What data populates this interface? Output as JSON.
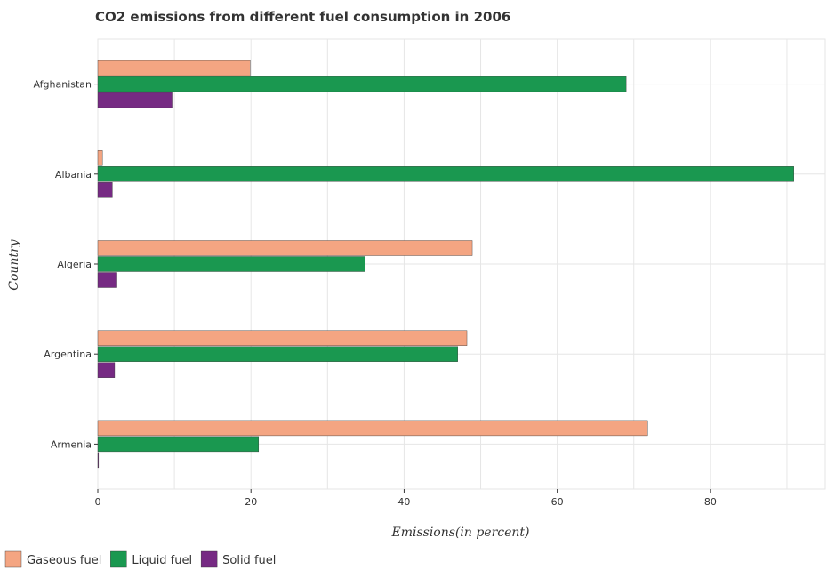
{
  "chart_data": {
    "type": "bar",
    "orientation": "horizontal",
    "title": "CO2 emissions from different fuel consumption in 2006",
    "xlabel": "Emissions(in percent)",
    "ylabel": "Country",
    "categories": [
      "Afghanistan",
      "Albania",
      "Algeria",
      "Argentina",
      "Armenia"
    ],
    "series": [
      {
        "name": "Gaseous fuel",
        "color": "#f4a582",
        "values": [
          19.9,
          0.6,
          48.9,
          48.2,
          71.8
        ]
      },
      {
        "name": "Liquid fuel",
        "color": "#1a9850",
        "values": [
          69.0,
          90.9,
          34.9,
          47.0,
          21.0
        ]
      },
      {
        "name": "Solid fuel",
        "color": "#762a83",
        "values": [
          9.7,
          1.9,
          2.5,
          2.2,
          0.1
        ]
      }
    ],
    "xlim": [
      0,
      95
    ],
    "xticks": [
      0,
      20,
      40,
      60,
      80
    ],
    "grid": true,
    "legend_position": "bottom-left"
  }
}
